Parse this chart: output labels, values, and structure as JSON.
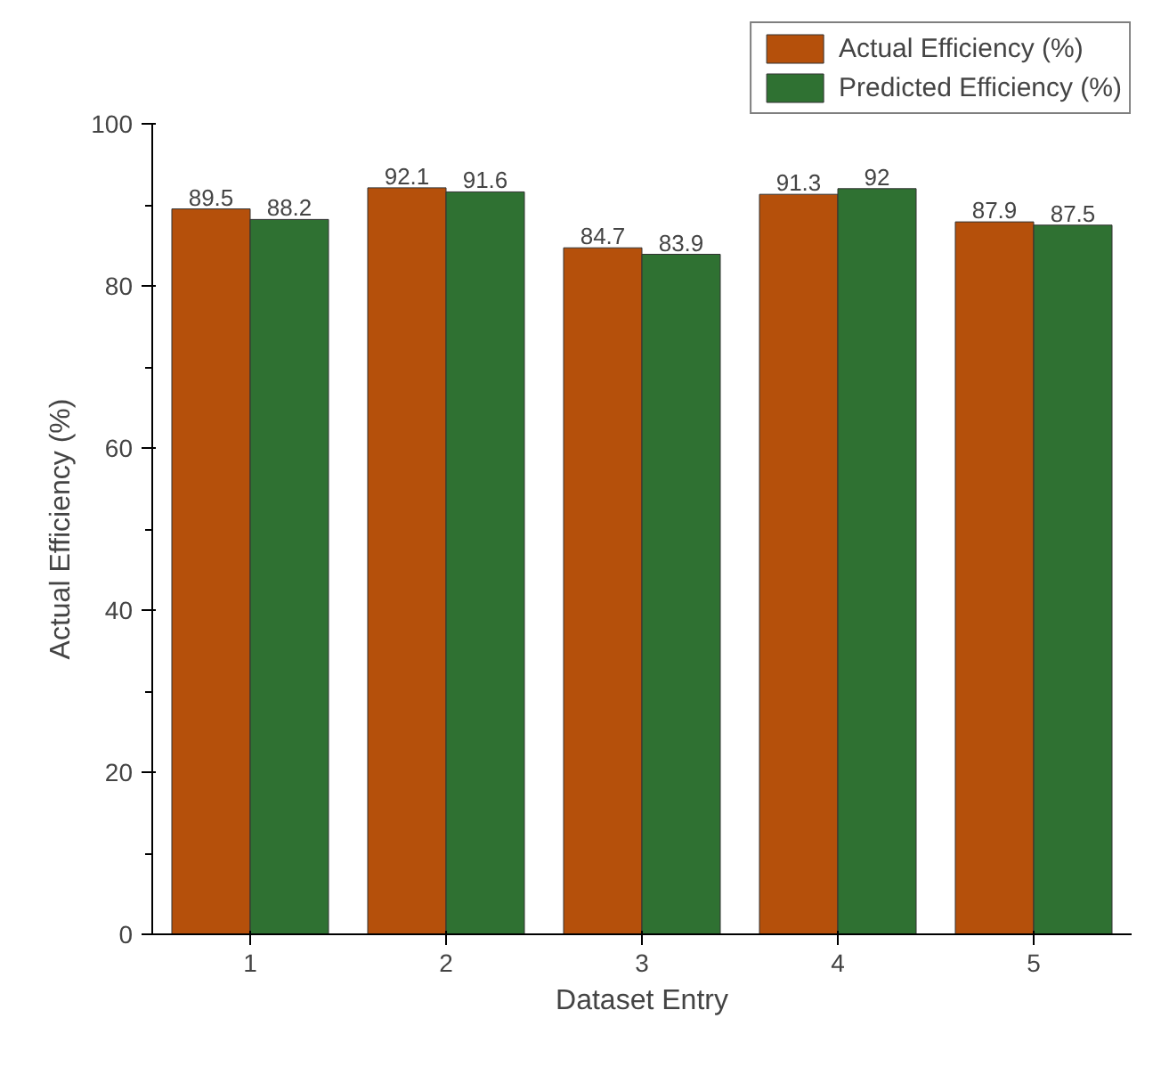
{
  "chart_data": {
    "type": "bar",
    "xlabel": "Dataset Entry",
    "ylabel": "Actual Efficiency (%)",
    "categories": [
      "1",
      "2",
      "3",
      "4",
      "5"
    ],
    "series": [
      {
        "name": "Actual Efficiency (%)",
        "color": "#b5500b",
        "values": [
          89.5,
          92.1,
          84.7,
          91.3,
          87.9
        ]
      },
      {
        "name": "Predicted Efficiency (%)",
        "color": "#2f7132",
        "values": [
          88.2,
          91.6,
          83.9,
          92,
          87.5
        ]
      }
    ],
    "ylim": [
      0,
      100
    ],
    "yticks": [
      0,
      20,
      40,
      60,
      80,
      100
    ],
    "grid": false,
    "legend": "top right",
    "data_labels": true
  }
}
